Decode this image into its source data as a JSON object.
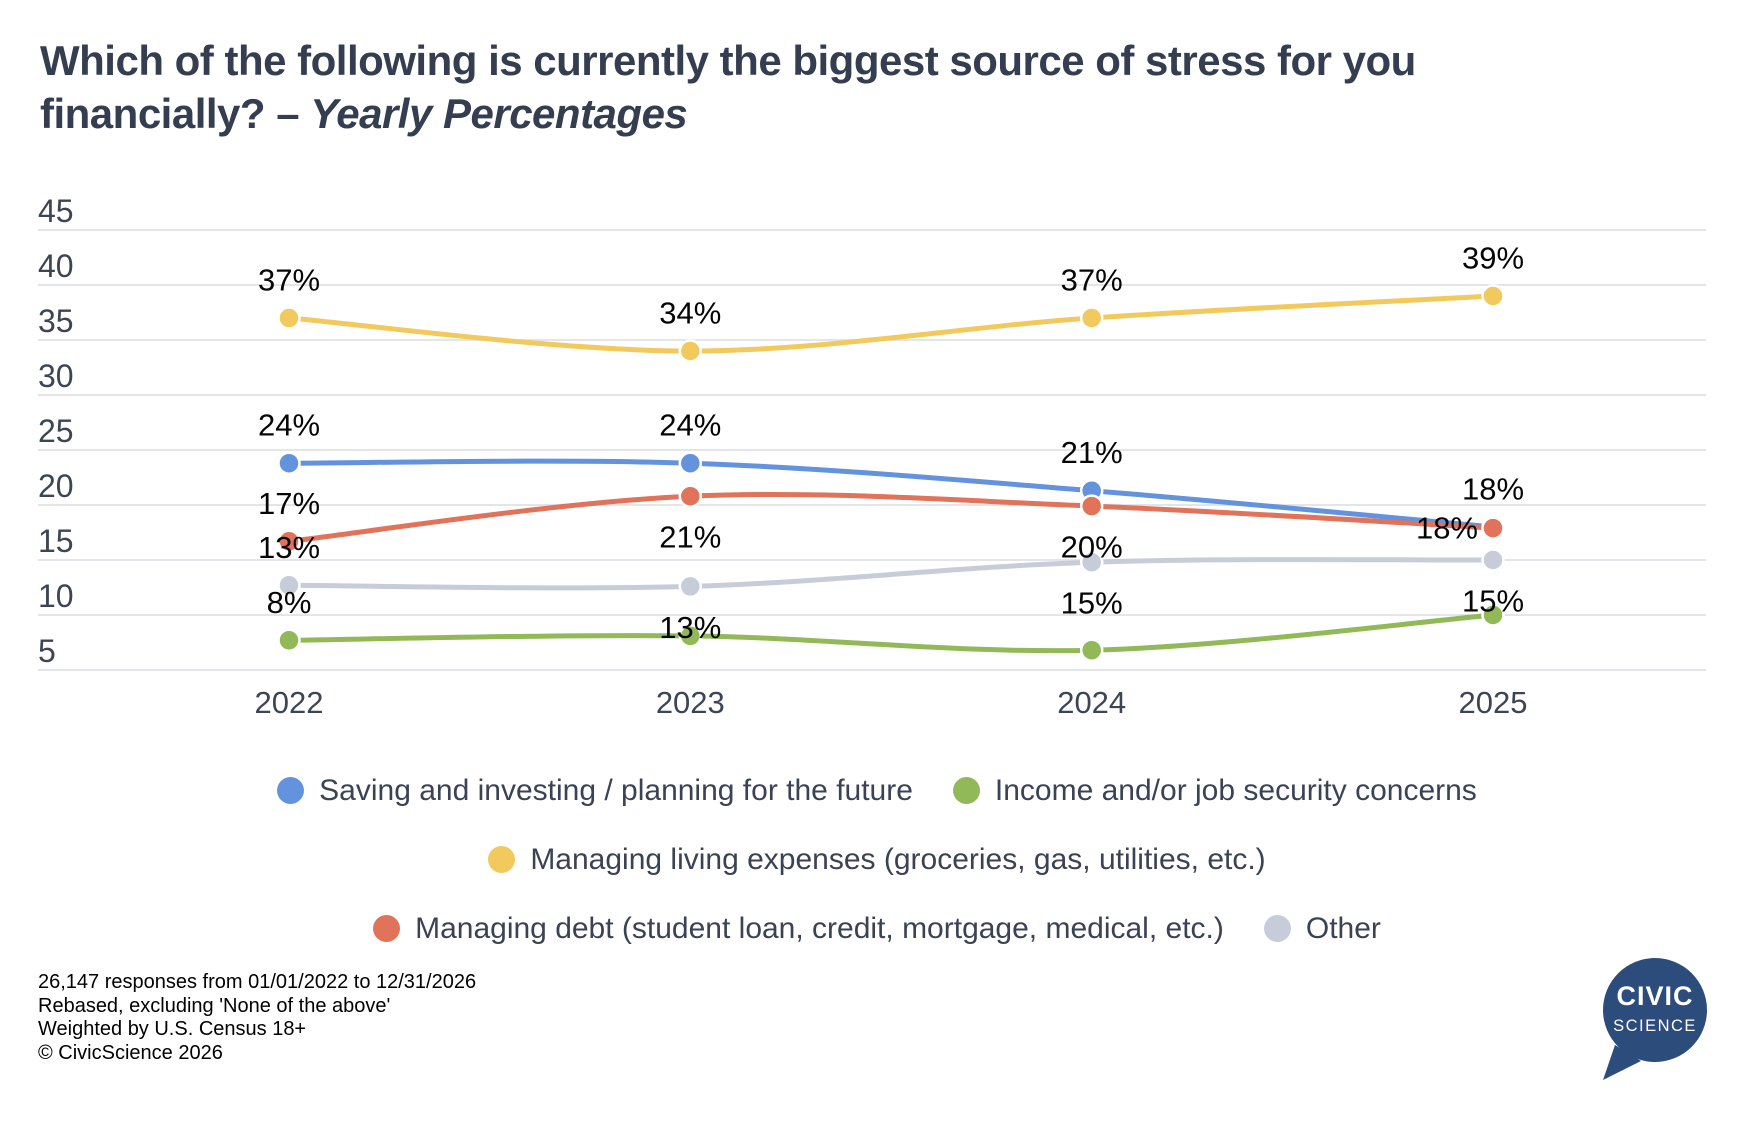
{
  "title": {
    "text": "Which of the following is currently the biggest source of stress for you financially?",
    "separator": " – ",
    "subtitle": "Yearly Percentages"
  },
  "chart_data": {
    "type": "line",
    "categories": [
      "2022",
      "2023",
      "2024",
      "2025"
    ],
    "ylim": [
      5,
      45
    ],
    "y_ticks": [
      45,
      40,
      35,
      30,
      25,
      20,
      15,
      10,
      5
    ],
    "grid": "horizontal",
    "legend_position": "bottom",
    "series": [
      {
        "name": "Saving and investing / planning for the future",
        "color": "#6493DE",
        "values": [
          24,
          24,
          21,
          18
        ],
        "plot_values": [
          23.8,
          23.8,
          21.3,
          18
        ],
        "point_labels": [
          {
            "text": "24%",
            "placement": "above"
          },
          {
            "text": "24%",
            "placement": "above"
          },
          {
            "text": "21%",
            "placement": "above"
          },
          {
            "text": "18%",
            "placement": "above"
          }
        ]
      },
      {
        "name": "Income and/or job security concerns",
        "color": "#92B958",
        "values": [
          8,
          8,
          7,
          10
        ],
        "plot_values": [
          7.7,
          8.1,
          6.8,
          10
        ],
        "point_labels": [
          {
            "text": "8%",
            "placement": "above"
          },
          null,
          null,
          null
        ]
      },
      {
        "name": "Managing living expenses (groceries, gas, utilities, etc.)",
        "color": "#F2C95D",
        "values": [
          37,
          34,
          37,
          39
        ],
        "plot_values": [
          37,
          34,
          37,
          39
        ],
        "point_labels": [
          {
            "text": "37%",
            "placement": "above"
          },
          {
            "text": "34%",
            "placement": "above"
          },
          {
            "text": "37%",
            "placement": "above"
          },
          {
            "text": "39%",
            "placement": "above"
          }
        ]
      },
      {
        "name": "Managing debt (student loan, credit, mortgage, medical, etc.)",
        "color": "#E0735A",
        "values": [
          17,
          21,
          20,
          18
        ],
        "plot_values": [
          16.7,
          20.8,
          19.9,
          17.9
        ],
        "point_labels": [
          {
            "text": "17%",
            "placement": "above"
          },
          {
            "text": "21%",
            "placement": "below"
          },
          {
            "text": "20%",
            "placement": "below"
          },
          {
            "text": "18%",
            "placement": "left"
          }
        ]
      },
      {
        "name": "Other",
        "color": "#C7CDD8",
        "values": [
          13,
          13,
          15,
          15
        ],
        "plot_values": [
          12.7,
          12.6,
          14.8,
          15
        ],
        "point_labels": [
          {
            "text": "13%",
            "placement": "above"
          },
          {
            "text": "13%",
            "placement": "below"
          },
          {
            "text": "15%",
            "placement": "below"
          },
          {
            "text": "15%",
            "placement": "below"
          }
        ]
      }
    ],
    "legend_rows": [
      [
        0,
        1
      ],
      [
        2
      ],
      [
        3,
        4
      ]
    ]
  },
  "footer": {
    "lines": [
      "26,147 responses from 01/01/2022 to 12/31/2026",
      "Rebased, excluding 'None of the above'",
      "Weighted by U.S. Census 18+",
      "© CivicScience 2026"
    ]
  },
  "logo": {
    "line1": "CIVIC",
    "line2": "SCIENCE",
    "color": "#2C4C7C"
  }
}
